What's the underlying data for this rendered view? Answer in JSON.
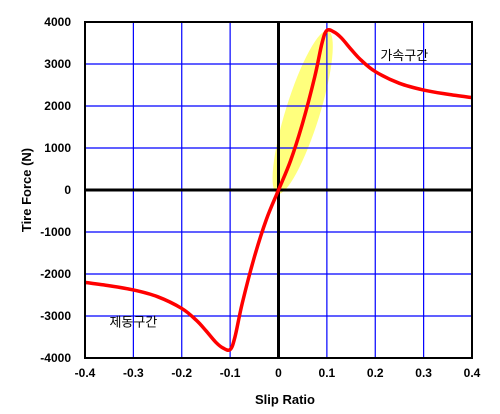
{
  "chart_data": {
    "type": "line",
    "xlabel": "Slip Ratio",
    "ylabel": "Tire Force (N)",
    "xlim": [
      -0.4,
      0.4
    ],
    "ylim": [
      -4000,
      4000
    ],
    "x_ticks": [
      "-0.4",
      "-0.3",
      "-0.2",
      "-0.1",
      "0",
      "0.1",
      "0.2",
      "0.3",
      "0.4"
    ],
    "y_ticks": [
      "4000",
      "3000",
      "2000",
      "1000",
      "0",
      "-1000",
      "-2000",
      "-3000",
      "-4000"
    ],
    "x_tick_values": [
      -0.4,
      -0.3,
      -0.2,
      -0.1,
      0,
      0.1,
      0.2,
      0.3,
      0.4
    ],
    "y_tick_values": [
      4000,
      3000,
      2000,
      1000,
      0,
      -1000,
      -2000,
      -3000,
      -4000
    ],
    "grid": true,
    "grid_color": "#0000ff",
    "series": [
      {
        "color": "#ff0000",
        "x": [
          -0.4,
          -0.35,
          -0.3,
          -0.25,
          -0.2,
          -0.17,
          -0.15,
          -0.13,
          -0.115,
          -0.1,
          -0.09,
          -0.075,
          -0.05,
          -0.025,
          0,
          0.025,
          0.05,
          0.075,
          0.09,
          0.1,
          0.115,
          0.13,
          0.15,
          0.17,
          0.2,
          0.25,
          0.3,
          0.35,
          0.4
        ],
        "y": [
          -2200,
          -2280,
          -2380,
          -2540,
          -2820,
          -3100,
          -3350,
          -3620,
          -3760,
          -3800,
          -3500,
          -2700,
          -1600,
          -700,
          0,
          700,
          1600,
          2700,
          3500,
          3800,
          3760,
          3620,
          3350,
          3100,
          2820,
          2540,
          2380,
          2280,
          2200
        ]
      }
    ],
    "highlight": {
      "color": "#ffff66",
      "x_range": [
        0,
        0.1
      ],
      "y_range": [
        0,
        3700
      ]
    },
    "annotations": [
      {
        "text": "가속구간",
        "x": 0.26,
        "y": 3100
      },
      {
        "text": "제동구간",
        "x": -0.3,
        "y": -3250
      }
    ]
  }
}
